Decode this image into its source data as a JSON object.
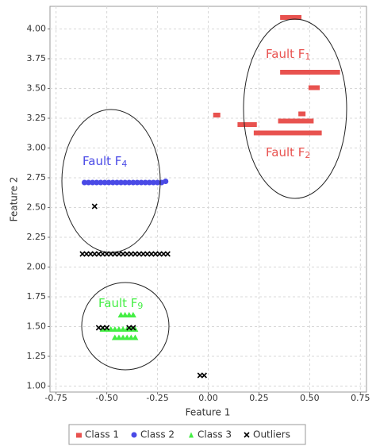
{
  "chart_data": {
    "type": "scatter",
    "x_label": "Feature 1",
    "y_label": "Feature 2",
    "xlim": [
      -0.78,
      0.78
    ],
    "ylim": [
      0.95,
      4.19
    ],
    "xticks": [
      {
        "value": -0.75,
        "label": "-0.75"
      },
      {
        "value": -0.5,
        "label": "-0.50"
      },
      {
        "value": -0.25,
        "label": "-0.25"
      },
      {
        "value": 0,
        "label": "0.00"
      },
      {
        "value": 0.25,
        "label": "0.25"
      },
      {
        "value": 0.5,
        "label": "0.50"
      },
      {
        "value": 0.75,
        "label": "0.75"
      }
    ],
    "yticks": [
      {
        "value": 1,
        "label": "1.00"
      },
      {
        "value": 1.25,
        "label": "1.25"
      },
      {
        "value": 1.5,
        "label": "1.50"
      },
      {
        "value": 1.75,
        "label": "1.75"
      },
      {
        "value": 2,
        "label": "2.00"
      },
      {
        "value": 2.25,
        "label": "2.25"
      },
      {
        "value": 2.5,
        "label": "2.50"
      },
      {
        "value": 2.75,
        "label": "2.75"
      },
      {
        "value": 3,
        "label": "3.00"
      },
      {
        "value": 3.25,
        "label": "3.25"
      },
      {
        "value": 3.5,
        "label": "3.50"
      },
      {
        "value": 3.75,
        "label": "3.75"
      },
      {
        "value": 4,
        "label": "4.00"
      }
    ],
    "grid": true,
    "legend": "bottom",
    "series": [
      {
        "name": "Class 1",
        "color": "#e8524f",
        "marker": "square",
        "x": [
          0.37,
          0.39,
          0.41,
          0.43,
          0.44,
          0.37,
          0.39,
          0.41,
          0.43,
          0.45,
          0.47,
          0.49,
          0.51,
          0.53,
          0.55,
          0.57,
          0.59,
          0.61,
          0.63,
          0.51,
          0.53,
          0.04,
          0.46,
          0.16,
          0.18,
          0.2,
          0.22,
          0.36,
          0.38,
          0.4,
          0.42,
          0.44,
          0.46,
          0.48,
          0.5,
          0.24,
          0.26,
          0.28,
          0.3,
          0.32,
          0.34,
          0.36,
          0.38,
          0.4,
          0.42,
          0.44,
          0.46,
          0.48,
          0.5,
          0.52,
          0.54
        ],
        "y": [
          4.1,
          4.1,
          4.1,
          4.1,
          4.1,
          3.64,
          3.64,
          3.64,
          3.64,
          3.64,
          3.64,
          3.64,
          3.64,
          3.64,
          3.64,
          3.64,
          3.64,
          3.64,
          3.64,
          3.51,
          3.51,
          3.28,
          3.29,
          3.2,
          3.2,
          3.2,
          3.2,
          3.23,
          3.23,
          3.23,
          3.23,
          3.23,
          3.23,
          3.23,
          3.23,
          3.13,
          3.13,
          3.13,
          3.13,
          3.13,
          3.13,
          3.13,
          3.13,
          3.13,
          3.13,
          3.13,
          3.13,
          3.13,
          3.13,
          3.13,
          3.13
        ]
      },
      {
        "name": "Class 2",
        "color": "#4a4ae6",
        "marker": "circle",
        "x": [
          -0.61,
          -0.59,
          -0.57,
          -0.55,
          -0.53,
          -0.51,
          -0.49,
          -0.47,
          -0.45,
          -0.43,
          -0.41,
          -0.39,
          -0.37,
          -0.35,
          -0.33,
          -0.31,
          -0.29,
          -0.27,
          -0.25,
          -0.23,
          -0.21
        ],
        "y": [
          2.71,
          2.71,
          2.71,
          2.71,
          2.71,
          2.71,
          2.71,
          2.71,
          2.71,
          2.71,
          2.71,
          2.71,
          2.71,
          2.71,
          2.71,
          2.71,
          2.71,
          2.71,
          2.71,
          2.71,
          2.72
        ]
      },
      {
        "name": "Class 3",
        "color": "#44ee44",
        "marker": "triangle",
        "x": [
          -0.43,
          -0.41,
          -0.39,
          -0.37,
          -0.52,
          -0.5,
          -0.48,
          -0.46,
          -0.44,
          -0.42,
          -0.4,
          -0.38,
          -0.36,
          -0.46,
          -0.44,
          -0.42,
          -0.4,
          -0.38,
          -0.36
        ],
        "y": [
          1.6,
          1.6,
          1.6,
          1.6,
          1.48,
          1.48,
          1.48,
          1.48,
          1.48,
          1.48,
          1.48,
          1.48,
          1.48,
          1.41,
          1.41,
          1.41,
          1.41,
          1.41,
          1.41
        ]
      },
      {
        "name": "Outliers",
        "color": "#000000",
        "marker": "cross",
        "x": [
          -0.62,
          -0.6,
          -0.58,
          -0.56,
          -0.54,
          -0.52,
          -0.5,
          -0.48,
          -0.46,
          -0.44,
          -0.42,
          -0.4,
          -0.38,
          -0.36,
          -0.34,
          -0.32,
          -0.3,
          -0.28,
          -0.26,
          -0.24,
          -0.22,
          -0.2,
          -0.56,
          -0.54,
          -0.52,
          -0.5,
          -0.39,
          -0.37,
          -0.04,
          -0.02
        ],
        "y": [
          2.11,
          2.11,
          2.11,
          2.11,
          2.11,
          2.11,
          2.11,
          2.11,
          2.11,
          2.11,
          2.11,
          2.11,
          2.11,
          2.11,
          2.11,
          2.11,
          2.11,
          2.11,
          2.11,
          2.11,
          2.11,
          2.11,
          2.51,
          1.49,
          1.49,
          1.49,
          1.49,
          1.49,
          1.09,
          1.09
        ]
      }
    ],
    "annotations": [
      {
        "text": "Fault F",
        "sub": "1",
        "color": "#e8524f"
      },
      {
        "text": "Fault F",
        "sub": "2",
        "color": "#e8524f"
      },
      {
        "text": "Fault F",
        "sub": "4",
        "color": "#4a4ae6"
      },
      {
        "text": "Fault F",
        "sub": "9",
        "color": "#44ee44"
      }
    ]
  }
}
